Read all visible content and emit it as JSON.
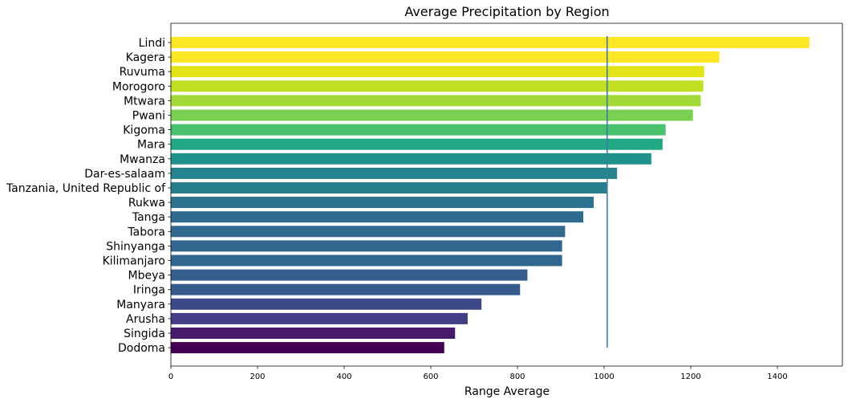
{
  "chart_data": {
    "type": "bar",
    "orientation": "horizontal",
    "title": "Average Precipitation by Region",
    "xlabel": "Range Average",
    "ylabel": "",
    "xlim": [
      0,
      1550
    ],
    "xticks": [
      0,
      200,
      400,
      600,
      800,
      1000,
      1200,
      1400
    ],
    "grid": false,
    "reference_line": {
      "x": 1007
    },
    "reference_line_color": "#3b7ea1",
    "colormap": "viridis",
    "categories": [
      "Lindi",
      "Kagera",
      "Ruvuma",
      "Morogoro",
      "Mtwara",
      "Pwani",
      "Kigoma",
      "Mara",
      "Mwanza",
      "Dar-es-salaam",
      "Tanzania, United Republic of",
      "Rukwa",
      "Tanga",
      "Tabora",
      "Shinyanga",
      "Kilimanjaro",
      "Mbeya",
      "Iringa",
      "Manyara",
      "Arusha",
      "Singida",
      "Dodoma"
    ],
    "values": [
      1474,
      1266,
      1231,
      1229,
      1223,
      1205,
      1142,
      1135,
      1109,
      1030,
      1007,
      976,
      952,
      910,
      903,
      903,
      823,
      806,
      717,
      685,
      656,
      631
    ],
    "colors": [
      "#fde725",
      "#fde725",
      "#e2e418",
      "#c2df23",
      "#a2da37",
      "#7ad151",
      "#4ac16d",
      "#22a785",
      "#21918c",
      "#25848e",
      "#277f8e",
      "#2c718e",
      "#2f6b8e",
      "#31688e",
      "#31668e",
      "#31668e",
      "#355e8d",
      "#365c8d",
      "#3e4989",
      "#433e85",
      "#481a6c",
      "#440154"
    ]
  }
}
